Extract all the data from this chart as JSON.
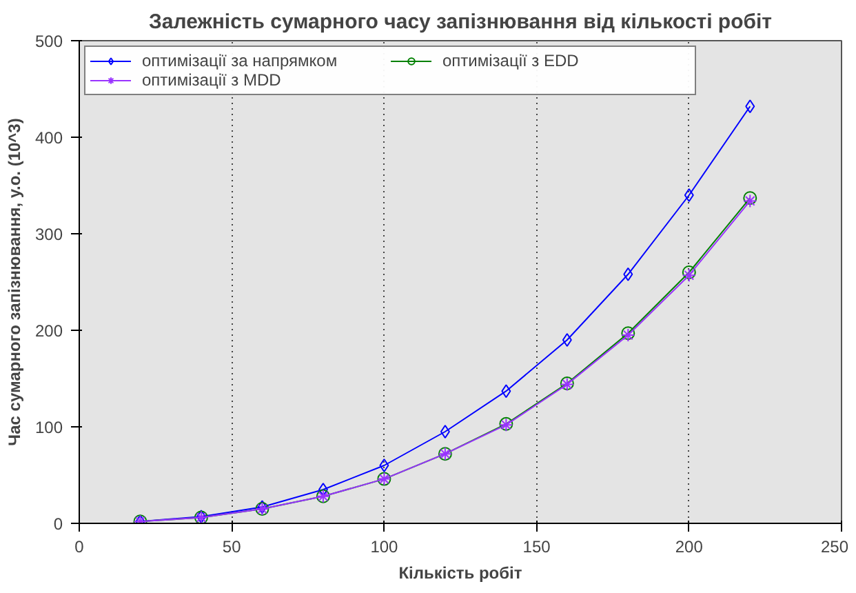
{
  "chart_data": {
    "type": "line",
    "title": "Залежність сумарного часу запізнювання від кількості робіт",
    "xlabel": "Кількість робіт",
    "ylabel": "Час сумарного запізнювання, у.о. (10^3)",
    "x": [
      20,
      40,
      60,
      80,
      100,
      120,
      140,
      160,
      180,
      200,
      220
    ],
    "series": [
      {
        "name": "оптимізації за напрямком",
        "color": "#0000ff",
        "marker": "diamond",
        "values": [
          2,
          7,
          17,
          35,
          60,
          95,
          137,
          190,
          258,
          340,
          432
        ]
      },
      {
        "name": "оптимізації з EDD",
        "color": "#008000",
        "marker": "circle",
        "values": [
          2,
          6,
          15,
          28,
          46,
          72,
          103,
          145,
          197,
          260,
          337
        ]
      },
      {
        "name": "оптимізації з MDD",
        "color": "#9933ff",
        "marker": "cross",
        "values": [
          2,
          6,
          15,
          28,
          46,
          72,
          102,
          144,
          195,
          257,
          334
        ]
      }
    ],
    "xlim": [
      0,
      250
    ],
    "ylim": [
      0,
      500
    ],
    "xticks": [
      0,
      50,
      100,
      150,
      200,
      250
    ],
    "yticks": [
      0,
      100,
      200,
      300,
      400,
      500
    ],
    "grid": "x",
    "legend": "top",
    "line_style": "solid"
  }
}
